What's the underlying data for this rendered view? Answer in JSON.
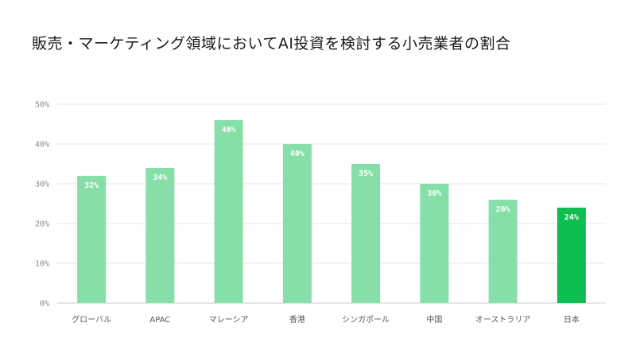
{
  "chart_data": {
    "type": "bar",
    "title": "販売・マーケティング領域においてAI投資を検討する小売業者の割合",
    "xlabel": "",
    "ylabel": "",
    "categories": [
      "グローバル",
      "APAC",
      "マレーシア",
      "香港",
      "シンガポール",
      "中国",
      "オーストラリア",
      "日本"
    ],
    "values": [
      32,
      34,
      46,
      40,
      35,
      30,
      26,
      24
    ],
    "data_labels": [
      "32%",
      "34%",
      "46%",
      "40%",
      "35%",
      "30%",
      "26%",
      "24%"
    ],
    "ylim": [
      0,
      50
    ],
    "yticks": [
      0,
      10,
      20,
      30,
      40,
      50
    ],
    "ytick_labels": [
      "0%",
      "10%",
      "20%",
      "30%",
      "40%",
      "50%"
    ],
    "grid": true,
    "legend": "none",
    "colors": {
      "bar": "#86dfa8",
      "bar_highlight": "#0fbe50",
      "grid": "#e6e6e6",
      "axis": "#cccccc"
    },
    "highlight_index": 7
  }
}
